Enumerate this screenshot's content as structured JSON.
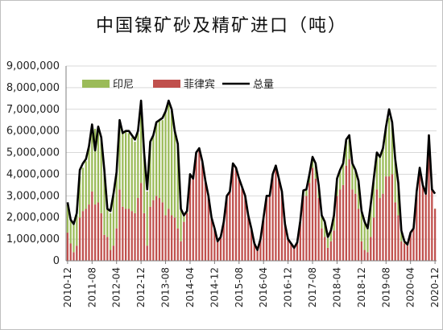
{
  "chart_data": {
    "type": "bar",
    "title": "中国镍矿砂及精矿进口（吨）",
    "ylim": [
      0,
      9000000
    ],
    "y_ticks": [
      "0",
      "1,000,000",
      "2,000,000",
      "3,000,000",
      "4,000,000",
      "5,000,000",
      "6,000,000",
      "7,000,000",
      "8,000,000",
      "9,000,000"
    ],
    "x_tick_labels": [
      "2010-12",
      "2011-08",
      "2012-04",
      "2012-12",
      "2013-08",
      "2014-04",
      "2014-12",
      "2015-08",
      "2016-04",
      "2016-12",
      "2017-08",
      "2018-04",
      "2018-12",
      "2019-08",
      "2020-04",
      "2020-12"
    ],
    "legend": [
      {
        "name": "印尼",
        "color": "#9BBB59",
        "kind": "bar"
      },
      {
        "name": "菲律宾",
        "color": "#C0504D",
        "kind": "bar"
      },
      {
        "name": "总量",
        "color": "#000000",
        "kind": "line"
      }
    ],
    "x": [
      "2010-12",
      "2011-01",
      "2011-02",
      "2011-03",
      "2011-04",
      "2011-05",
      "2011-06",
      "2011-07",
      "2011-08",
      "2011-09",
      "2011-10",
      "2011-11",
      "2011-12",
      "2012-01",
      "2012-02",
      "2012-03",
      "2012-04",
      "2012-05",
      "2012-06",
      "2012-07",
      "2012-08",
      "2012-09",
      "2012-10",
      "2012-11",
      "2012-12",
      "2013-01",
      "2013-02",
      "2013-03",
      "2013-04",
      "2013-05",
      "2013-06",
      "2013-07",
      "2013-08",
      "2013-09",
      "2013-10",
      "2013-11",
      "2013-12",
      "2014-01",
      "2014-02",
      "2014-03",
      "2014-04",
      "2014-05",
      "2014-06",
      "2014-07",
      "2014-08",
      "2014-09",
      "2014-10",
      "2014-11",
      "2014-12",
      "2015-01",
      "2015-02",
      "2015-03",
      "2015-04",
      "2015-05",
      "2015-06",
      "2015-07",
      "2015-08",
      "2015-09",
      "2015-10",
      "2015-11",
      "2015-12",
      "2016-01",
      "2016-02",
      "2016-03",
      "2016-04",
      "2016-05",
      "2016-06",
      "2016-07",
      "2016-08",
      "2016-09",
      "2016-10",
      "2016-11",
      "2016-12",
      "2017-01",
      "2017-02",
      "2017-03",
      "2017-04",
      "2017-05",
      "2017-06",
      "2017-07",
      "2017-08",
      "2017-09",
      "2017-10",
      "2017-11",
      "2017-12",
      "2018-01",
      "2018-02",
      "2018-03",
      "2018-04",
      "2018-05",
      "2018-06",
      "2018-07",
      "2018-08",
      "2018-09",
      "2018-10",
      "2018-11",
      "2018-12",
      "2019-01",
      "2019-02",
      "2019-03",
      "2019-04",
      "2019-05",
      "2019-06",
      "2019-07",
      "2019-08",
      "2019-09",
      "2019-10",
      "2019-11",
      "2019-12",
      "2020-01",
      "2020-02",
      "2020-03",
      "2020-04",
      "2020-05",
      "2020-06",
      "2020-07",
      "2020-08",
      "2020-09",
      "2020-10",
      "2020-11",
      "2020-12"
    ],
    "series": [
      {
        "name": "印尼",
        "color": "#9BBB59",
        "values": [
          1300000,
          1100000,
          1300000,
          1400000,
          1900000,
          2000000,
          2200000,
          2700000,
          3100000,
          3500000,
          3400000,
          3500000,
          3000000,
          1300000,
          1700000,
          2300000,
          2600000,
          3200000,
          3400000,
          3600000,
          3500000,
          3400000,
          3300000,
          3000000,
          3700000,
          2700000,
          2500000,
          3000000,
          3000000,
          3400000,
          3600000,
          3800000,
          4800000,
          5000000,
          4900000,
          4000000,
          3800000,
          1500000,
          300000,
          60000,
          20000,
          20000,
          10000,
          10000,
          10000,
          10000,
          10000,
          10000,
          10000,
          10000,
          10000,
          10000,
          10000,
          10000,
          10000,
          10000,
          10000,
          10000,
          10000,
          10000,
          10000,
          10000,
          10000,
          10000,
          10000,
          10000,
          10000,
          10000,
          10000,
          10000,
          10000,
          10000,
          10000,
          10000,
          10000,
          50000,
          150000,
          250000,
          300000,
          400000,
          500000,
          700000,
          600000,
          600000,
          700000,
          450000,
          500000,
          700000,
          800000,
          900000,
          1000000,
          1200000,
          1100000,
          1200000,
          1100000,
          1300000,
          1400000,
          1300000,
          1100000,
          1500000,
          1800000,
          1700000,
          1900000,
          2100000,
          2300000,
          2700000,
          2400000,
          2000000,
          1500000,
          450000,
          100000,
          50000,
          20000,
          10000,
          10000,
          10000,
          10000,
          10000,
          10000,
          10000,
          10000
        ]
      },
      {
        "name": "菲律宾",
        "color": "#C0504D",
        "values": [
          1300000,
          800000,
          400000,
          700000,
          2000000,
          2300000,
          2400000,
          2600000,
          3200000,
          2600000,
          2700000,
          2200000,
          1200000,
          1100000,
          500000,
          700000,
          1500000,
          3300000,
          2500000,
          2400000,
          2400000,
          2300000,
          2200000,
          2900000,
          3600000,
          2200000,
          700000,
          2500000,
          2800000,
          3000000,
          2900000,
          2700000,
          2100000,
          2400000,
          2100000,
          2000000,
          1500000,
          900000,
          1800000,
          2200000,
          4000000,
          3800000,
          5000000,
          5200000,
          4600000,
          3700000,
          3000000,
          2000000,
          1500000,
          900000,
          1100000,
          1800000,
          3000000,
          3200000,
          4500000,
          4300000,
          3800000,
          3400000,
          3000000,
          2100000,
          1500000,
          800000,
          500000,
          1000000,
          2000000,
          3000000,
          3000000,
          4000000,
          4400000,
          3800000,
          3200000,
          1700000,
          1000000,
          800000,
          600000,
          800000,
          1700000,
          3000000,
          3000000,
          3600000,
          4300000,
          3800000,
          2900000,
          1500000,
          1100000,
          600000,
          900000,
          1400000,
          3000000,
          3300000,
          3500000,
          4400000,
          4700000,
          3300000,
          3100000,
          2400000,
          900000,
          500000,
          400000,
          1100000,
          2000000,
          3300000,
          2900000,
          3100000,
          3900000,
          3900000,
          4000000,
          2700000,
          2100000,
          900000,
          800000,
          700000,
          1300000,
          1500000,
          3200000,
          4300000,
          3500000,
          3100000,
          5800000,
          3300000,
          2400000
        ]
      },
      {
        "name": "总量",
        "color": "#000000",
        "values": [
          2700000,
          1900000,
          1700000,
          2200000,
          4200000,
          4500000,
          4700000,
          5300000,
          6300000,
          5100000,
          6200000,
          5700000,
          4200000,
          2400000,
          2300000,
          3100000,
          4100000,
          6500000,
          5900000,
          6000000,
          6000000,
          5800000,
          5600000,
          6000000,
          7400000,
          5000000,
          3300000,
          5500000,
          5800000,
          6400000,
          6500000,
          6600000,
          6900000,
          7400000,
          7000000,
          6000000,
          5400000,
          2400000,
          2100000,
          2300000,
          4000000,
          3800000,
          5000000,
          5200000,
          4600000,
          3700000,
          3000000,
          2000000,
          1500000,
          900000,
          1100000,
          1800000,
          3000000,
          3200000,
          4500000,
          4300000,
          3800000,
          3400000,
          3000000,
          2100000,
          1500000,
          800000,
          500000,
          1000000,
          2000000,
          3000000,
          3000000,
          4000000,
          4400000,
          3800000,
          3200000,
          1700000,
          1000000,
          800000,
          600000,
          850000,
          1850000,
          3250000,
          3300000,
          4000000,
          4800000,
          4500000,
          3500000,
          2100000,
          1800000,
          1100000,
          1400000,
          2100000,
          3800000,
          4200000,
          4500000,
          5600000,
          5800000,
          4500000,
          4200000,
          3700000,
          2300000,
          1800000,
          1500000,
          2600000,
          3800000,
          5000000,
          4800000,
          5200000,
          6200000,
          7000000,
          6400000,
          4700000,
          3600000,
          1400000,
          900000,
          750000,
          1300000,
          1500000,
          3200000,
          4300000,
          3500000,
          3100000,
          5800000,
          3300000,
          3100000
        ]
      }
    ]
  }
}
